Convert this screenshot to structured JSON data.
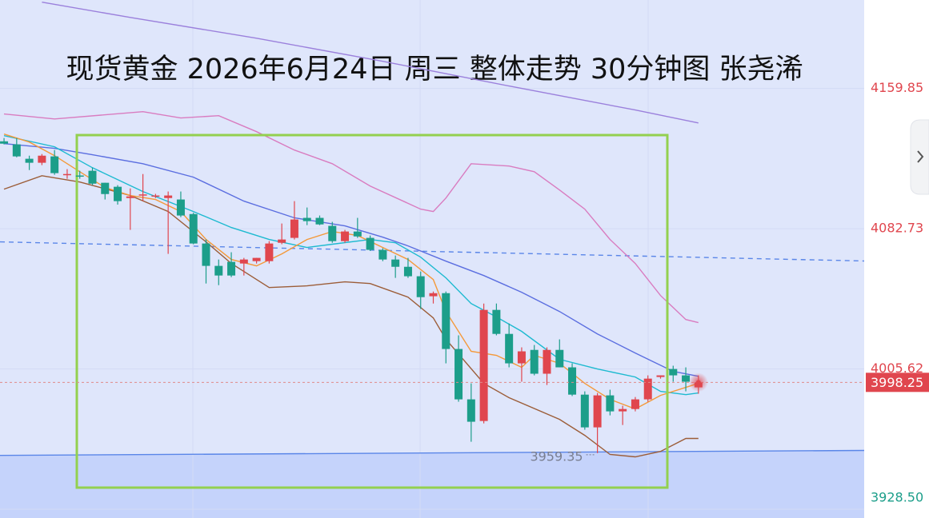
{
  "chart_data": {
    "type": "candlestick",
    "title": "现货黄金 2026年6月24日 周三 整体走势 30分钟图 张尧浠",
    "up_color": "#e0464e",
    "down_color": "#1c9e8a",
    "xlim": [
      -0.32,
      68.13
    ],
    "ylim": [
      3928.5,
      4208.5
    ],
    "yticks": [
      4159.85,
      4082.73,
      4005.62,
      {
        "value": 3928.5,
        "label": "3928.50"
      }
    ],
    "grid": true,
    "candles": {
      "open": [
        4130.8,
        4129.1,
        4121.2,
        4119.0,
        4122.5,
        4112.8,
        4112.0,
        4114.6,
        4108.0,
        4105.8,
        4099.6,
        4101.0,
        4100.5,
        4099.6,
        4098.8,
        4090.8,
        4074.6,
        4062.3,
        4064.5,
        4063.6,
        4064.9,
        4064.9,
        4075.0,
        4077.7,
        4088.7,
        4088.7,
        4084.3,
        4075.9,
        4081.2,
        4077.7,
        4071.1,
        4065.8,
        4061.8,
        4056.6,
        4045.6,
        4047.3,
        4016.6,
        3988.9,
        3977.0,
        4038.1,
        4024.9,
        4008.7,
        4016.1,
        4003.0,
        4016.1,
        4006.5,
        3991.5,
        3973.5,
        3991.1,
        3982.3,
        3983.6,
        3988.9,
        4001.2,
        4005.6,
        4002.1,
        3995.5
      ],
      "high": [
        4132.6,
        4132.6,
        4122.9,
        4123.8,
        4126.0,
        4115.5,
        4114.6,
        4116.3,
        4108.0,
        4106.7,
        4104.9,
        4112.8,
        4101.9,
        4103.2,
        4103.2,
        4091.5,
        4076.8,
        4065.8,
        4069.8,
        4066.7,
        4066.7,
        4075.9,
        4085.6,
        4097.9,
        4094.4,
        4090.0,
        4086.5,
        4082.1,
        4088.7,
        4079.0,
        4072.0,
        4068.0,
        4066.7,
        4059.2,
        4048.2,
        4048.2,
        4024.1,
        3997.7,
        4041.6,
        4041.6,
        4030.6,
        4017.5,
        4018.8,
        4017.5,
        4021.9,
        4008.7,
        3993.3,
        3992.4,
        3994.2,
        3985.4,
        3990.2,
        4002.1,
        4002.1,
        4007.4,
        4006.5,
        4002.1
      ],
      "low": [
        4129.1,
        4122.0,
        4115.0,
        4117.7,
        4112.4,
        4110.2,
        4110.2,
        4106.7,
        4098.8,
        4096.0,
        4082.1,
        4097.9,
        4099.6,
        4068.9,
        4089.1,
        4074.2,
        4052.6,
        4051.7,
        4056.1,
        4057.0,
        4063.6,
        4063.6,
        4074.2,
        4076.8,
        4084.7,
        4084.7,
        4075.0,
        4075.0,
        4077.7,
        4070.5,
        4064.9,
        4055.7,
        4055.7,
        4038.6,
        4041.6,
        4008.7,
        3987.6,
        3965.6,
        3975.7,
        4024.1,
        4006.5,
        3998.6,
        4002.1,
        3996.8,
        4006.5,
        3990.7,
        3972.2,
        3959.35,
        3980.1,
        3974.8,
        3982.3,
        3987.6,
        4000.3,
        3998.6,
        3993.3,
        3992.0
      ],
      "close": [
        4129.5,
        4122.5,
        4119.0,
        4122.9,
        4113.3,
        4112.8,
        4111.9,
        4107.5,
        4101.8,
        4097.9,
        4100.5,
        4101.6,
        4101.0,
        4101.0,
        4090.0,
        4074.6,
        4062.3,
        4057.0,
        4057.0,
        4065.8,
        4066.7,
        4074.6,
        4076.8,
        4087.8,
        4086.9,
        4085.1,
        4075.9,
        4081.2,
        4078.5,
        4071.1,
        4065.8,
        4061.8,
        4056.6,
        4045.1,
        4047.3,
        4016.6,
        3988.9,
        3976.6,
        4038.1,
        4024.9,
        4008.7,
        4015.3,
        4003.0,
        4016.1,
        4006.5,
        3991.5,
        3973.5,
        3991.1,
        3982.3,
        3983.6,
        3988.9,
        4000.3,
        4002.1,
        4002.1,
        3998.6,
        3998.25
      ]
    },
    "lines": [
      {
        "color": "#5a86e8",
        "fill_below": "#c5d3fb",
        "x": [
          -0.32,
          68.13
        ],
        "values": [
          3958.1,
          3960.8
        ]
      },
      {
        "color": "#5a86e8",
        "dashed": true,
        "x": [
          -0.32,
          68.13
        ],
        "values": [
          4075.5,
          4065.0
        ]
      },
      {
        "color": "#9b80dc",
        "x": [
          3,
          10,
          20,
          30,
          40,
          50,
          55
        ],
        "values": [
          4207.3,
          4198.9,
          4187.5,
          4174.8,
          4161.2,
          4148.0,
          4140.9
        ]
      },
      {
        "color": "#d97cc0",
        "x": [
          0,
          4,
          11,
          14,
          17,
          20,
          23,
          26,
          29,
          33,
          34,
          35,
          37,
          40,
          42,
          44,
          46,
          48,
          50,
          52,
          54,
          55
        ],
        "values": [
          4145.8,
          4143.1,
          4147.1,
          4143.6,
          4144.9,
          4136.1,
          4126.0,
          4118.5,
          4106.2,
          4093.5,
          4092.2,
          4099.6,
          4118.5,
          4117.2,
          4114.1,
          4104.0,
          4093.5,
          4076.8,
          4063.6,
          4046.0,
          4032.8,
          4031.1
        ]
      },
      {
        "color": "#9c5d38",
        "x": [
          0,
          3,
          6,
          10,
          13,
          16,
          18,
          21,
          24,
          27,
          29,
          32,
          34,
          35,
          38,
          40,
          44,
          46,
          48,
          50,
          52,
          54,
          55
        ],
        "values": [
          4104.5,
          4111.9,
          4108.4,
          4101.0,
          4092.2,
          4075.5,
          4063.6,
          4050.4,
          4051.3,
          4053.5,
          4052.6,
          4045.1,
          4033.7,
          4021.9,
          3997.7,
          3989.8,
          3977.9,
          3969.1,
          3958.6,
          3957.3,
          3960.3,
          3967.4,
          3967.4
        ]
      },
      {
        "color": "#5b6ee0",
        "x": [
          0,
          4,
          7,
          11,
          15,
          19,
          23,
          27,
          30,
          32,
          35,
          38,
          41,
          44,
          47,
          50,
          53,
          55
        ],
        "values": [
          4129.5,
          4126.9,
          4123.4,
          4118.5,
          4111.1,
          4097.9,
          4088.7,
          4084.3,
          4078.1,
          4073.3,
          4064.9,
          4057.0,
          4047.8,
          4037.2,
          4024.9,
          4014.4,
          4004.3,
          4001.6
        ]
      },
      {
        "color": "#1dbad0",
        "x": [
          0,
          4,
          7,
          11,
          15,
          18,
          21,
          24,
          26,
          29,
          31,
          33,
          35,
          37,
          39,
          41,
          44,
          47,
          50,
          52,
          54,
          55
        ],
        "values": [
          4133.9,
          4127.8,
          4116.3,
          4103.2,
          4092.2,
          4083.4,
          4076.8,
          4072.4,
          4074.2,
          4076.8,
          4075.0,
          4067.1,
          4055.7,
          4041.6,
          4034.2,
          4026.3,
          4010.9,
          4005.6,
          4001.2,
          3993.3,
          3991.5,
          3992.4
        ]
      },
      {
        "color": "#f4993a",
        "x": [
          0,
          2,
          4,
          6,
          8,
          10,
          12,
          14,
          16,
          18,
          20,
          22,
          24,
          26,
          28,
          30,
          32,
          34,
          35,
          37,
          39,
          41,
          42,
          44,
          46,
          48,
          50,
          52,
          54,
          55
        ],
        "values": [
          4134.8,
          4130.4,
          4122.9,
          4114.1,
          4105.4,
          4101.0,
          4098.8,
          4092.2,
          4076.8,
          4065.8,
          4062.3,
          4068.9,
          4076.8,
          4081.2,
          4079.0,
          4072.4,
          4065.8,
          4054.8,
          4037.2,
          4015.3,
          4013.1,
          4006.5,
          4013.1,
          4008.7,
          3997.7,
          3988.9,
          3983.6,
          3991.1,
          3995.5,
          3997.7
        ]
      }
    ]
  }
}
